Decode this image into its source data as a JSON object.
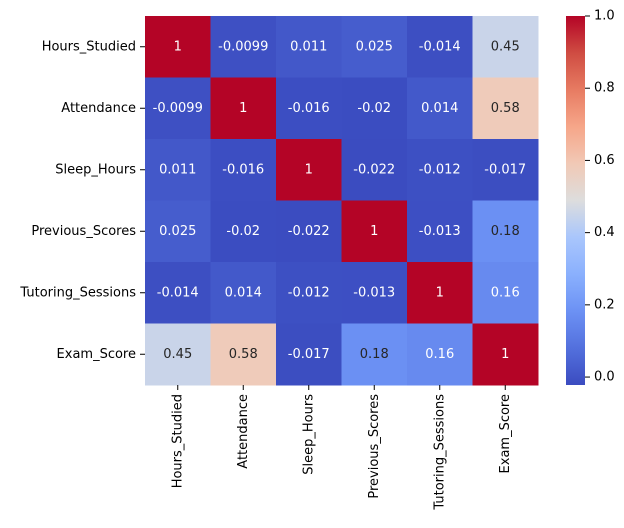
{
  "chart_data": {
    "type": "heatmap",
    "title": "",
    "xlabel": "",
    "ylabel": "",
    "rows": [
      "Hours_Studied",
      "Attendance",
      "Sleep_Hours",
      "Previous_Scores",
      "Tutoring_Sessions",
      "Exam_Score"
    ],
    "columns": [
      "Hours_Studied",
      "Attendance",
      "Sleep_Hours",
      "Previous_Scores",
      "Tutoring_Sessions",
      "Exam_Score"
    ],
    "values": [
      [
        1,
        -0.0099,
        0.011,
        0.025,
        -0.014,
        0.45
      ],
      [
        -0.0099,
        1,
        -0.016,
        -0.02,
        0.014,
        0.58
      ],
      [
        0.011,
        -0.016,
        1,
        -0.022,
        -0.012,
        -0.017
      ],
      [
        0.025,
        -0.02,
        -0.022,
        1,
        -0.013,
        0.18
      ],
      [
        -0.014,
        0.014,
        -0.012,
        -0.013,
        1,
        0.16
      ],
      [
        0.45,
        0.58,
        -0.017,
        0.18,
        0.16,
        1
      ]
    ],
    "labels": [
      [
        "1",
        "-0.0099",
        "0.011",
        "0.025",
        "-0.014",
        "0.45"
      ],
      [
        "-0.0099",
        "1",
        "-0.016",
        "-0.02",
        "0.014",
        "0.58"
      ],
      [
        "0.011",
        "-0.016",
        "1",
        "-0.022",
        "-0.012",
        "-0.017"
      ],
      [
        "0.025",
        "-0.02",
        "-0.022",
        "1",
        "-0.013",
        "0.18"
      ],
      [
        "-0.014",
        "0.014",
        "-0.012",
        "-0.013",
        "1",
        "0.16"
      ],
      [
        "0.45",
        "0.58",
        "-0.017",
        "0.18",
        "0.16",
        "1"
      ]
    ],
    "colormap": "coolwarm",
    "colorbar": {
      "range": [
        -0.022,
        1.0
      ],
      "ticks": [
        0.0,
        0.2,
        0.4,
        0.6,
        0.8,
        1.0
      ],
      "tick_labels": [
        "0.0",
        "0.2",
        "0.4",
        "0.6",
        "0.8",
        "1.0"
      ]
    },
    "colors": {
      "low": "#3b4cc0",
      "mid": "#dddddd",
      "high": "#b40426",
      "label_light": "#ffffff",
      "label_dark": "#262626"
    }
  }
}
